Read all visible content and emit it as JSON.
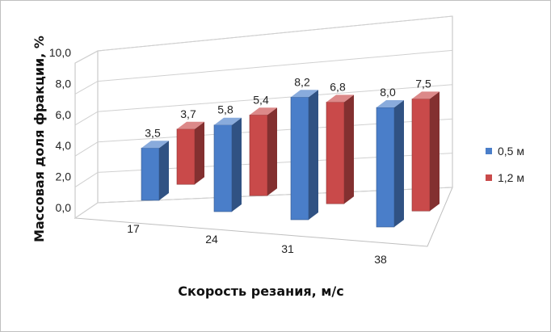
{
  "chart_data": {
    "type": "bar",
    "title": "",
    "xlabel": "Скорость резания, м/с",
    "ylabel": "Массовая доля фракции, %",
    "categories": [
      "17",
      "24",
      "31",
      "38"
    ],
    "series": [
      {
        "name": "0,5 м",
        "values": [
          3.5,
          5.8,
          8.2,
          8.0
        ],
        "labels": [
          "3,5",
          "5,8",
          "8,2",
          "8,0"
        ],
        "color": "#4a7ec9"
      },
      {
        "name": "1,2 м",
        "values": [
          3.7,
          5.4,
          6.8,
          7.5
        ],
        "labels": [
          "3,7",
          "5,4",
          "6,8",
          "7,5"
        ],
        "color": "#c94a4a"
      }
    ],
    "ylim": [
      0,
      10
    ],
    "yticks": [
      "0,0",
      "2,0",
      "4,0",
      "6,0",
      "8,0",
      "10,0"
    ],
    "grid": true,
    "legend": "right",
    "style": "3d-clustered-column"
  }
}
